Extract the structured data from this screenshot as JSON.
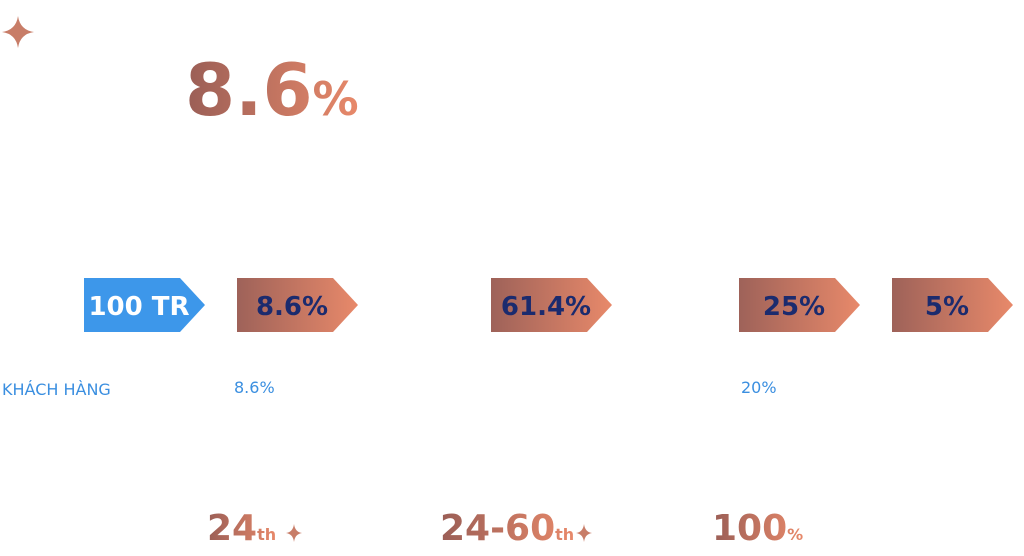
{
  "header": {
    "value": "8.6",
    "unit": "%"
  },
  "arrows": [
    "100 TR",
    "8.6%",
    "61.4%",
    "25%",
    "5%"
  ],
  "labels": [
    "KHÁCH HÀNG",
    "8.6%",
    "20%"
  ],
  "stats": [
    {
      "value": "24",
      "suffix": "th"
    },
    {
      "value": "24-60",
      "suffix": "th"
    },
    {
      "value": "100",
      "suffix": "%"
    }
  ]
}
